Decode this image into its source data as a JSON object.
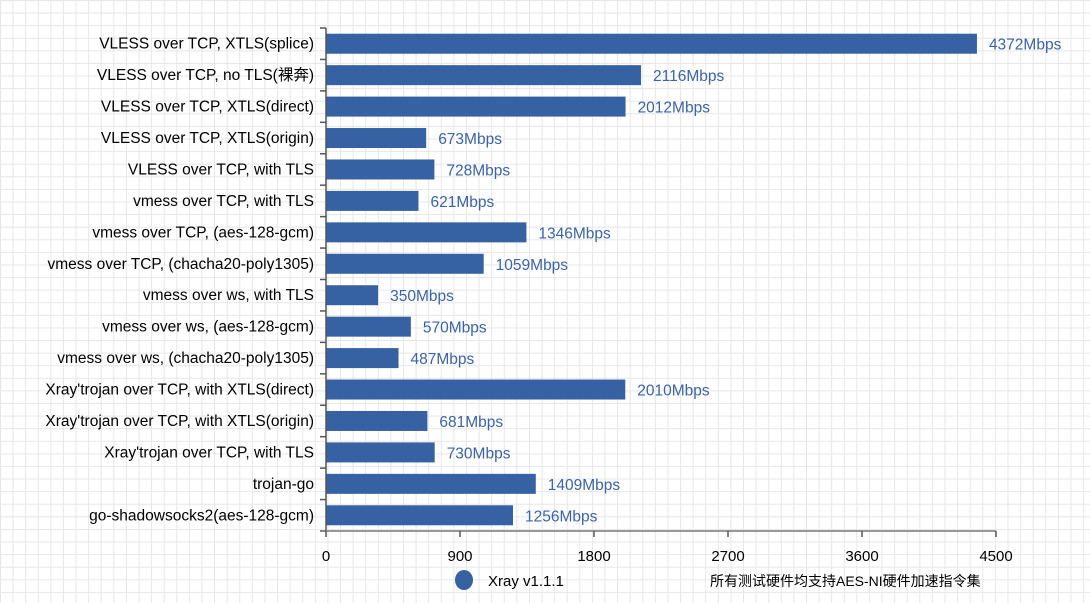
{
  "chart_data": {
    "type": "bar",
    "orientation": "horizontal",
    "categories": [
      "VLESS over TCP, XTLS(splice)",
      "VLESS over TCP, no TLS(裸奔)",
      "VLESS over TCP, XTLS(direct)",
      "VLESS over TCP, XTLS(origin)",
      "VLESS over TCP, with TLS",
      "vmess over TCP, with TLS",
      "vmess over TCP, (aes-128-gcm)",
      "vmess over TCP, (chacha20-poly1305)",
      "vmess over ws, with TLS",
      "vmess over ws, (aes-128-gcm)",
      "vmess over ws, (chacha20-poly1305)",
      "Xray'trojan over TCP, with XTLS(direct)",
      "Xray'trojan over TCP, with XTLS(origin)",
      "Xray'trojan over TCP, with TLS",
      "trojan-go",
      "go-shadowsocks2(aes-128-gcm)"
    ],
    "series": [
      {
        "name": "Xray v1.1.1",
        "values": [
          4372,
          2116,
          2012,
          673,
          728,
          621,
          1346,
          1059,
          350,
          570,
          487,
          2010,
          681,
          730,
          1409,
          1256
        ],
        "color": "#3661a3"
      }
    ],
    "data_labels": [
      "4372Mbps",
      "2116Mbps",
      "2012Mbps",
      "673Mbps",
      "728Mbps",
      "621Mbps",
      "1346Mbps",
      "1059Mbps",
      "350Mbps",
      "570Mbps",
      "487Mbps",
      "2010Mbps",
      "681Mbps",
      "730Mbps",
      "1409Mbps",
      "1256Mbps"
    ],
    "xlim": [
      0,
      4500
    ],
    "xticks": [
      "0",
      "900",
      "1800",
      "2700",
      "3600",
      "4500"
    ],
    "legend_placement": "bottom",
    "annotation": "所有测试硬件均支持AES-NI硬件加速指令集",
    "grid": false
  }
}
